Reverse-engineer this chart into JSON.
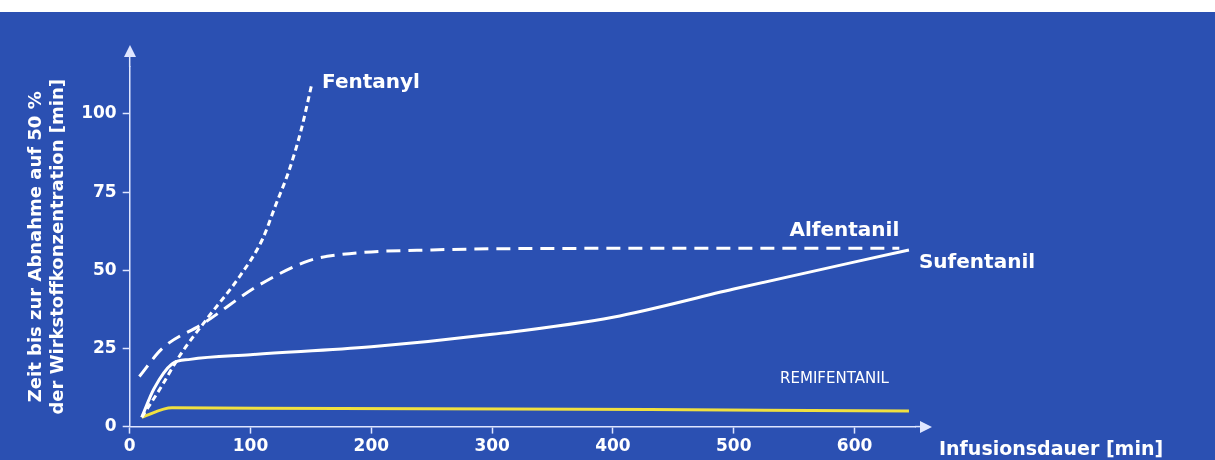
{
  "chart_data": {
    "type": "line",
    "xlabel": "Infusionsdauer [min]",
    "ylabel": "Zeit bis zur Abnahme auf 50 %\nder Wirkstoffkonzentration [min]",
    "xlim": [
      0,
      650
    ],
    "xticks": [
      0,
      100,
      200,
      300,
      400,
      500,
      600
    ],
    "ylim": [
      0,
      115
    ],
    "yticks": [
      0,
      25,
      50,
      75,
      100
    ],
    "marker": "none",
    "series": [
      {
        "name": "Fentanyl",
        "color": "#ffffff",
        "line_style": "dotted",
        "x": [
          10,
          25,
          42,
          65,
          91,
          110,
          121,
          132,
          142,
          151
        ],
        "values": [
          3,
          12,
          23,
          35,
          48,
          60,
          71,
          82,
          95,
          110
        ]
      },
      {
        "name": "Alfentanil",
        "color": "#ffffff",
        "line_style": "dashed",
        "x": [
          8,
          27,
          61,
          106,
          148,
          174,
          250,
          400,
          637
        ],
        "values": [
          16,
          25,
          33,
          45,
          53,
          55,
          56.5,
          57,
          57
        ]
      },
      {
        "name": "Sufentanil",
        "color": "#ffffff",
        "line_style": "solid",
        "x": [
          10,
          20,
          35,
          50,
          100,
          200,
          300,
          400,
          500,
          645
        ],
        "values": [
          3,
          12,
          20,
          21.5,
          23,
          25.5,
          29.5,
          35,
          44,
          56.5
        ]
      },
      {
        "name": "REMIFENTANIL",
        "color": "#f0e040",
        "line_style": "solid",
        "x": [
          10,
          35,
          645
        ],
        "values": [
          3,
          6,
          5
        ]
      }
    ]
  }
}
